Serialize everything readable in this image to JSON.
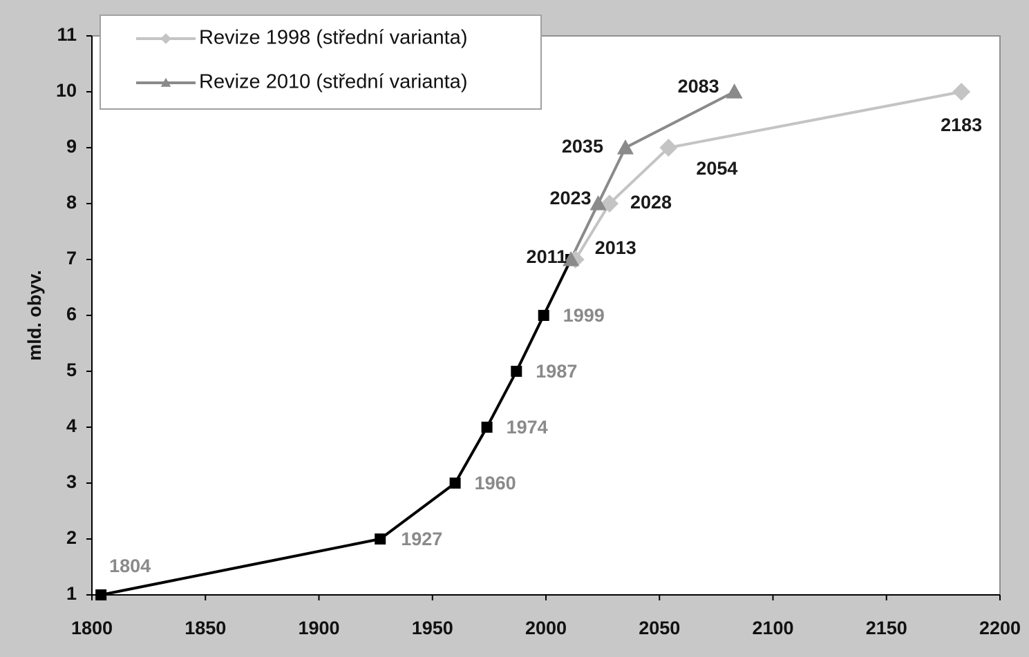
{
  "chart_data": {
    "type": "line",
    "y_label": "mld. obyv.",
    "xlim": [
      1800,
      2200
    ],
    "xticks": [
      1800,
      1850,
      1900,
      1950,
      2000,
      2050,
      2100,
      2150,
      2200
    ],
    "ylim": [
      1,
      11
    ],
    "yticks": [
      1,
      2,
      3,
      4,
      5,
      6,
      7,
      8,
      9,
      10,
      11
    ],
    "grid": false,
    "legend": "upper left",
    "series": [
      {
        "color": "#000000",
        "marker": "square",
        "label_color": "#8a8a8a",
        "x": [
          1804,
          1927,
          1960,
          1974,
          1987,
          1999,
          2011
        ],
        "values": [
          1,
          2,
          3,
          4,
          5,
          6,
          7
        ]
      },
      {
        "name": "Revize 1998 (střední varianta)",
        "color": "#c4c4c4",
        "marker": "diamond",
        "label_color": "#1a1a1a",
        "x": [
          2013,
          2028,
          2054,
          2183
        ],
        "values": [
          7,
          8,
          9,
          10
        ]
      },
      {
        "name": "Revize 2010 (střední varianta)",
        "color": "#8a8a8a",
        "marker": "triangle",
        "label_color": "#1a1a1a",
        "x": [
          2011,
          2023,
          2035,
          2083
        ],
        "values": [
          7,
          8,
          9,
          10
        ]
      }
    ]
  }
}
